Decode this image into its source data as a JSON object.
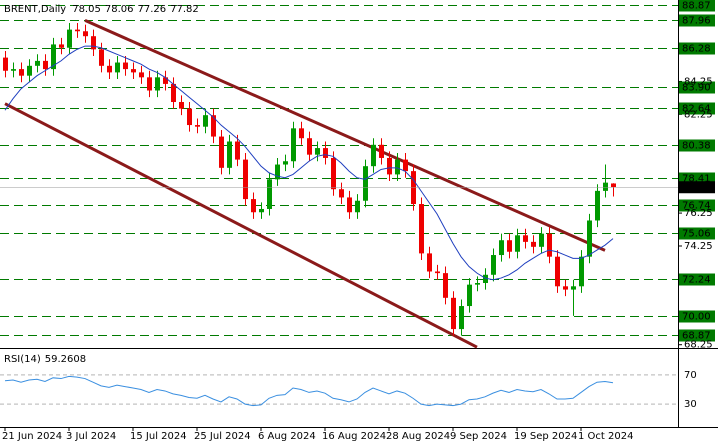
{
  "chart_data": [
    {
      "type": "candlestick",
      "title": "BRENT,Daily",
      "categories": [
        "21 Jun 2024",
        null,
        null,
        null,
        null,
        null,
        null,
        null,
        "3 Jul 2024",
        null,
        null,
        null,
        null,
        null,
        null,
        null,
        "15 Jul 2024",
        null,
        null,
        null,
        null,
        null,
        null,
        null,
        "25 Jul 2024",
        null,
        null,
        null,
        null,
        null,
        null,
        null,
        "6 Aug 2024",
        null,
        null,
        null,
        null,
        null,
        null,
        null,
        "16 Aug 2024",
        null,
        null,
        null,
        null,
        null,
        null,
        null,
        "28 Aug 2024",
        null,
        null,
        null,
        null,
        null,
        null,
        null,
        "9 Sep 2024",
        null,
        null,
        null,
        null,
        null,
        null,
        null,
        "19 Sep 2024",
        null,
        null,
        null,
        null,
        null,
        null,
        null,
        "1 Oct 2024",
        null,
        null,
        null,
        null
      ],
      "open": [
        85.7,
        84.9,
        85.0,
        84.6,
        85.2,
        85.5,
        85.0,
        86.5,
        86.3,
        87.4,
        87.3,
        87.0,
        86.2,
        85.2,
        84.8,
        85.4,
        85.0,
        84.8,
        84.5,
        83.7,
        84.5,
        84.1,
        83.0,
        82.6,
        81.6,
        81.5,
        82.2,
        80.9,
        79.0,
        80.6,
        79.5,
        77.1,
        76.3,
        76.5,
        78.3,
        79.2,
        79.4,
        81.4,
        80.8,
        79.8,
        80.2,
        79.6,
        77.7,
        77.2,
        76.3,
        77.0,
        79.1,
        80.4,
        79.6,
        78.6,
        79.5,
        78.8,
        76.8,
        73.8,
        72.7,
        72.6,
        71.1,
        69.2,
        70.6,
        71.9,
        72.0,
        72.5,
        73.7,
        74.6,
        73.9,
        74.9,
        74.5,
        74.2,
        75.0,
        73.6,
        71.8,
        71.6,
        71.8,
        73.6,
        75.8,
        77.6,
        78.05
      ],
      "high": [
        86.1,
        85.4,
        85.4,
        85.6,
        85.9,
        85.9,
        86.9,
        86.9,
        87.8,
        87.8,
        87.7,
        87.4,
        86.6,
        85.6,
        85.8,
        85.8,
        85.4,
        85.2,
        84.9,
        84.9,
        84.9,
        84.5,
        83.4,
        83.0,
        82.0,
        82.6,
        82.6,
        81.3,
        81.0,
        81.0,
        79.9,
        77.5,
        76.9,
        78.7,
        79.6,
        79.8,
        81.8,
        81.8,
        81.2,
        80.6,
        80.6,
        80.0,
        78.1,
        77.6,
        77.4,
        79.5,
        80.8,
        80.8,
        80.0,
        79.9,
        79.9,
        79.2,
        77.2,
        74.2,
        73.1,
        73.0,
        71.5,
        71.0,
        72.3,
        72.4,
        72.9,
        74.1,
        75.0,
        75.0,
        75.3,
        75.3,
        74.9,
        75.4,
        75.4,
        74.0,
        72.2,
        72.2,
        74.0,
        76.2,
        78.0,
        79.2,
        78.06
      ],
      "low": [
        84.5,
        84.5,
        84.2,
        84.2,
        84.8,
        84.6,
        84.6,
        85.9,
        85.9,
        86.9,
        86.6,
        85.8,
        84.8,
        84.4,
        84.4,
        84.6,
        84.4,
        84.1,
        83.3,
        83.3,
        83.7,
        82.6,
        82.2,
        81.2,
        81.1,
        81.1,
        80.5,
        78.6,
        78.6,
        79.1,
        76.7,
        75.9,
        75.9,
        76.1,
        77.9,
        78.8,
        79.0,
        80.4,
        79.4,
        79.4,
        79.2,
        77.3,
        76.8,
        75.9,
        75.9,
        76.6,
        78.7,
        79.2,
        78.2,
        78.2,
        78.4,
        76.4,
        73.4,
        72.3,
        72.2,
        70.7,
        68.8,
        68.8,
        70.2,
        71.5,
        71.6,
        72.1,
        73.3,
        73.5,
        73.5,
        74.1,
        73.8,
        73.8,
        73.2,
        71.4,
        71.2,
        70.0,
        71.4,
        73.2,
        75.4,
        77.2,
        77.26
      ],
      "close": [
        84.9,
        85.0,
        84.6,
        85.2,
        85.5,
        85.0,
        86.5,
        86.3,
        87.4,
        87.3,
        87.0,
        86.2,
        85.2,
        84.8,
        85.4,
        85.0,
        84.8,
        84.5,
        83.7,
        84.5,
        84.1,
        83.0,
        82.6,
        81.6,
        81.5,
        82.2,
        80.9,
        79.0,
        80.6,
        79.5,
        77.1,
        76.3,
        76.5,
        78.3,
        79.2,
        79.4,
        81.4,
        80.8,
        79.8,
        80.2,
        79.6,
        77.7,
        77.2,
        76.3,
        77.0,
        79.1,
        80.4,
        79.6,
        78.6,
        79.5,
        78.8,
        76.8,
        73.8,
        72.7,
        72.6,
        71.1,
        69.2,
        70.6,
        71.9,
        72.0,
        72.5,
        73.7,
        74.6,
        73.9,
        74.9,
        74.5,
        74.2,
        75.0,
        73.6,
        71.8,
        71.6,
        71.8,
        73.6,
        75.8,
        77.6,
        78.1,
        77.82
      ],
      "up_color": "#009900",
      "down_color": "#ee0000",
      "overlays": [
        {
          "color": "#1f3fbf",
          "values": [
            82.5,
            83.2,
            83.8,
            84.2,
            84.6,
            84.9,
            85.2,
            85.5,
            85.9,
            86.2,
            86.4,
            86.4,
            86.3,
            86.1,
            85.9,
            85.7,
            85.5,
            85.3,
            85.0,
            84.8,
            84.5,
            84.1,
            83.7,
            83.3,
            82.9,
            82.5,
            82.1,
            81.6,
            81.2,
            80.8,
            80.3,
            79.7,
            79.1,
            78.7,
            78.5,
            78.4,
            78.6,
            79.0,
            79.4,
            79.7,
            79.8,
            79.7,
            79.3,
            78.8,
            78.4,
            78.3,
            78.6,
            78.9,
            79.0,
            79.0,
            78.8,
            78.3,
            77.6,
            76.9,
            76.2,
            75.3,
            74.4,
            73.6,
            73.0,
            72.6,
            72.3,
            72.2,
            72.3,
            72.5,
            72.8,
            73.2,
            73.5,
            73.8,
            74.0,
            73.9,
            73.7,
            73.5,
            73.5,
            73.7,
            74.0,
            74.3,
            74.7
          ]
        }
      ],
      "trendlines": [
        {
          "color": "#8b1a1a",
          "x": [
            10,
            75
          ],
          "y": [
            87.96,
            73.98
          ]
        },
        {
          "color": "#8b1a1a",
          "x": [
            0,
            59
          ],
          "y": [
            82.9,
            68.1
          ]
        }
      ],
      "levels": [
        88.87,
        87.96,
        86.28,
        {
          "value": 83.9,
          "label": "83.90"
        },
        82.64,
        80.38,
        78.41,
        76.74,
        75.06,
        72.24,
        {
          "value": 70,
          "label": "70.00"
        },
        68.87
      ],
      "level_color": "#007a00",
      "last_price": 77.82,
      "ylim": [
        68.05,
        89.2
      ],
      "yticks": [
        84.25,
        82.25,
        76.25,
        74.25,
        68.25
      ]
    },
    {
      "type": "line",
      "title": "RSI(14)",
      "color": "#3a8fe0",
      "values": [
        62,
        63,
        60,
        63,
        64,
        61,
        66,
        65,
        68,
        67,
        65,
        60,
        55,
        53,
        56,
        54,
        52,
        50,
        46,
        50,
        48,
        44,
        42,
        39,
        38,
        42,
        37,
        33,
        40,
        37,
        30,
        28,
        29,
        38,
        42,
        43,
        52,
        50,
        46,
        48,
        45,
        38,
        36,
        33,
        37,
        46,
        52,
        48,
        44,
        48,
        45,
        38,
        30,
        28,
        30,
        29,
        28,
        30,
        36,
        37,
        40,
        45,
        49,
        46,
        50,
        48,
        47,
        50,
        44,
        37,
        37,
        38,
        46,
        54,
        60,
        61,
        59.2608
      ],
      "ylim": [
        0,
        100
      ],
      "yticks": [
        70,
        30
      ]
    }
  ]
}
